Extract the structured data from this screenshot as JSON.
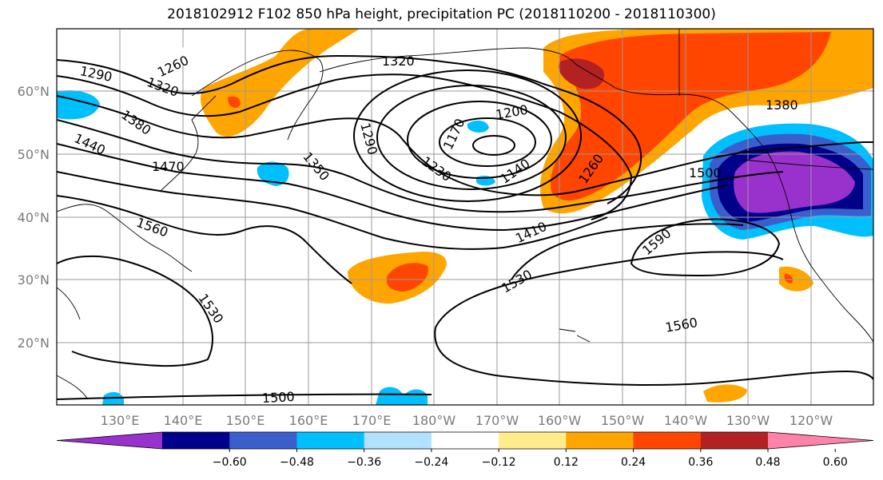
{
  "title": "2018102912 F102 850 hPa height, precipitation PC (2018110200 - 2018110300)",
  "lat_labels": [
    "60°N",
    "50°N",
    "40°N",
    "30°N",
    "20°N"
  ],
  "lon_labels": [
    "130°E",
    "140°E",
    "150°E",
    "160°E",
    "170°E",
    "180°W",
    "170°W",
    "160°W",
    "150°W",
    "140°W",
    "130°W",
    "120°W"
  ],
  "contour_labels": [
    "1260",
    "1290",
    "1320",
    "1320",
    "1380",
    "1440",
    "1470",
    "1350",
    "1290",
    "1170",
    "1200",
    "1140",
    "1230",
    "1260",
    "1380",
    "1500",
    "1410",
    "1560",
    "1590",
    "1530",
    "1530",
    "1560",
    "1500"
  ],
  "colorbar": {
    "colors": [
      "#9932cc",
      "#00008b",
      "#3a5fcd",
      "#00bfff",
      "#b0e2ff",
      "#ffffff",
      "#ffec8b",
      "#ffa500",
      "#ff4500",
      "#b22222",
      "#ff82ab"
    ],
    "tick_labels": [
      "−0.60",
      "−0.48",
      "−0.36",
      "−0.24",
      "−0.12",
      "0.12",
      "0.24",
      "0.36",
      "0.48",
      "0.60"
    ]
  }
}
